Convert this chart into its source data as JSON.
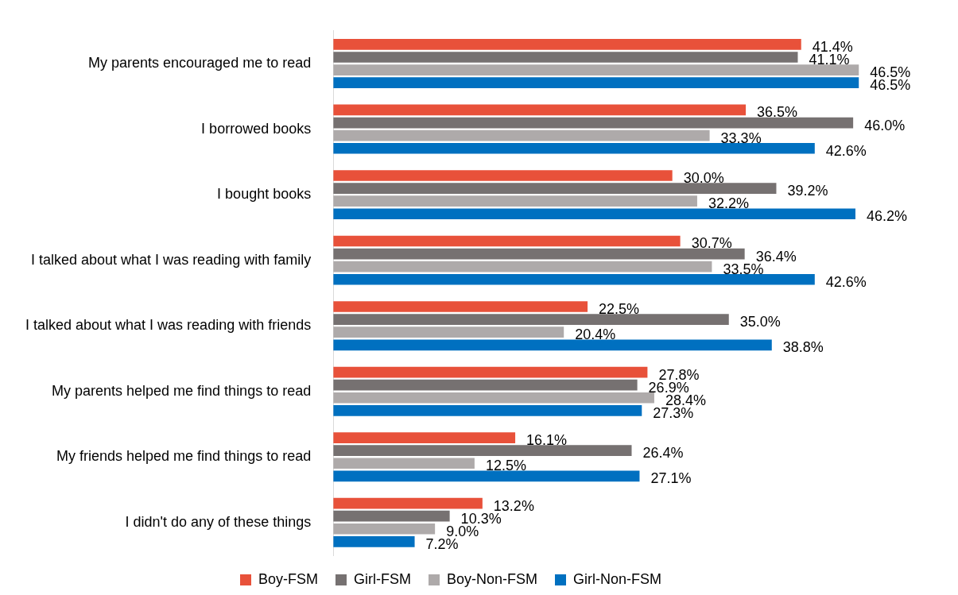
{
  "chart_data": {
    "type": "bar",
    "orientation": "horizontal",
    "categories": [
      "My parents encouraged me to read",
      "I borrowed books",
      "I bought books",
      "I talked about what I was reading with family",
      "I talked about what I was reading with friends",
      "My parents helped me find things to read",
      "My friends helped me find things to read",
      "I didn't do any of these things"
    ],
    "series": [
      {
        "name": "Boy-FSM",
        "color": "#e8513a",
        "values": [
          41.4,
          36.5,
          30.0,
          30.7,
          22.5,
          27.8,
          16.1,
          13.2
        ],
        "value_labels": [
          "41.4%",
          "36.5%",
          "30.0%",
          "30.7%",
          "22.5%",
          "27.8%",
          "16.1%",
          "13.2%"
        ]
      },
      {
        "name": "Girl-FSM",
        "color": "#767171",
        "values": [
          41.1,
          46.0,
          39.2,
          36.4,
          35.0,
          26.9,
          26.4,
          10.3
        ],
        "value_labels": [
          "41.1%",
          "46.0%",
          "39.2%",
          "36.4%",
          "35.0%",
          "26.9%",
          "26.4%",
          "10.3%"
        ]
      },
      {
        "name": "Boy-Non-FSM",
        "color": "#aeaaaa",
        "values": [
          46.5,
          33.3,
          32.2,
          33.5,
          20.4,
          28.4,
          12.5,
          9.0
        ],
        "value_labels": [
          "46.5%",
          "33.3%",
          "32.2%",
          "33.5%",
          "20.4%",
          "28.4%",
          "12.5%",
          "9.0%"
        ]
      },
      {
        "name": "Girl-Non-FSM",
        "color": "#0070c0",
        "values": [
          46.5,
          42.6,
          46.2,
          42.6,
          38.8,
          27.3,
          27.1,
          7.2
        ],
        "value_labels": [
          "46.5%",
          "42.6%",
          "46.2%",
          "42.6%",
          "38.8%",
          "27.3%",
          "27.1%",
          "7.2%"
        ]
      }
    ],
    "tick_labels": "y",
    "grid": false,
    "legend": "bottom"
  }
}
